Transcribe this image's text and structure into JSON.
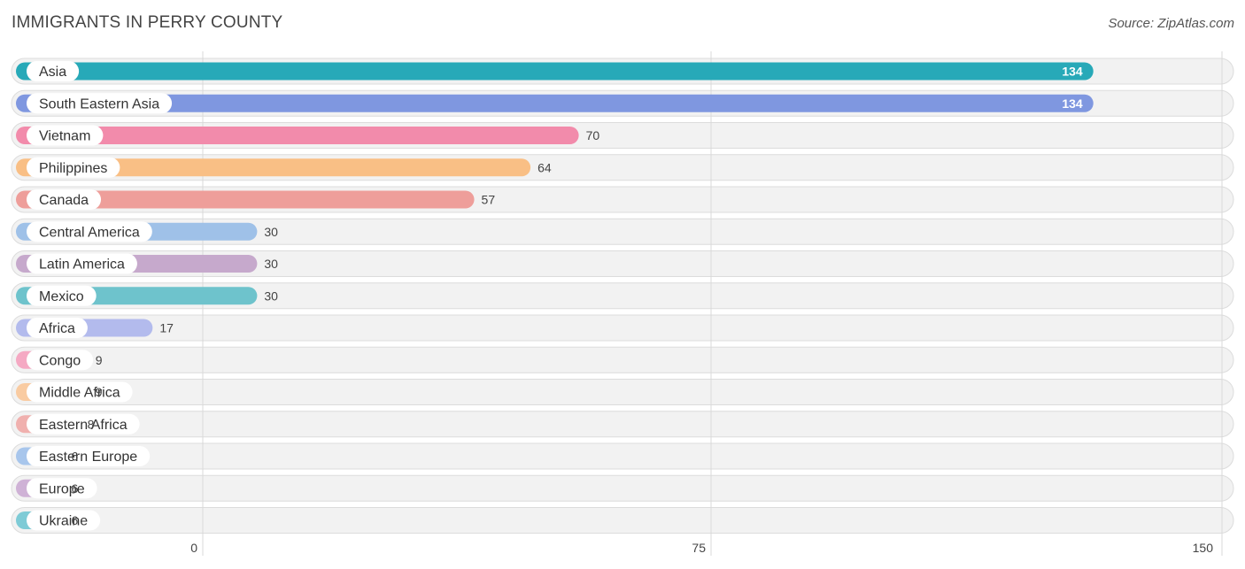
{
  "chart_data": {
    "type": "bar",
    "orientation": "horizontal",
    "title": "IMMIGRANTS IN PERRY COUNTY",
    "source": "Source: ZipAtlas.com",
    "xlim": [
      0,
      150
    ],
    "xticks": [
      0,
      75,
      150
    ],
    "grid": true,
    "categories": [
      "Asia",
      "South Eastern Asia",
      "Vietnam",
      "Philippines",
      "Canada",
      "Central America",
      "Latin America",
      "Mexico",
      "Africa",
      "Congo",
      "Middle Africa",
      "Eastern Africa",
      "Eastern Europe",
      "Europe",
      "Ukraine"
    ],
    "values": [
      134,
      134,
      70,
      64,
      57,
      30,
      30,
      30,
      17,
      9,
      9,
      8,
      6,
      6,
      6
    ],
    "colors": [
      "#27a9b8",
      "#7f97e0",
      "#f28bab",
      "#f9bf85",
      "#ee9e9a",
      "#9fc1e8",
      "#c6a9cc",
      "#6ec3cc",
      "#b3bbed",
      "#f5a9c3",
      "#f9cba1",
      "#f0b0ae",
      "#a8c6ec",
      "#cfb2d6",
      "#7ecbd6"
    ]
  }
}
